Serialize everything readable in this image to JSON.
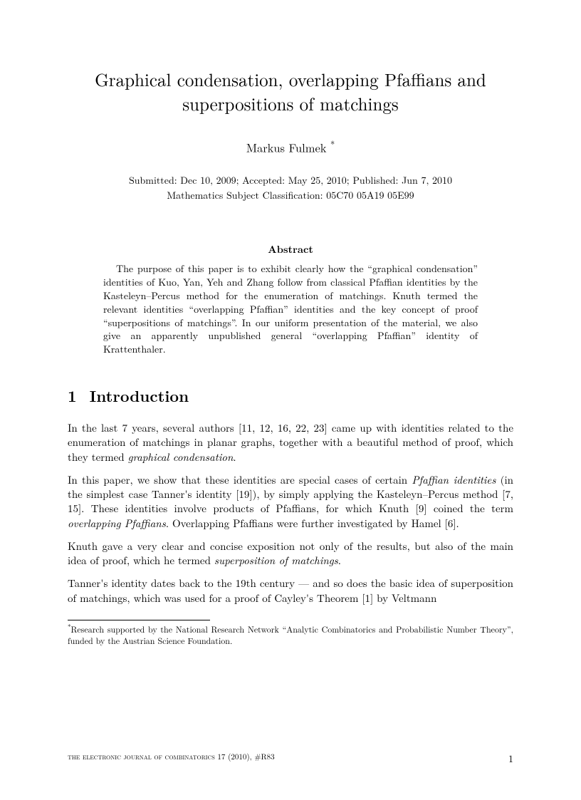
{
  "title_line1": "Graphical condensation, overlapping Pfaffians and",
  "title_line2": "superpositions of matchings",
  "author": "Markus Fulmek",
  "author_mark": "*",
  "submission": "Submitted: Dec 10, 2009; Accepted: May 25, 2010; Published: Jun 7, 2010",
  "msc": "Mathematics Subject Classification: 05C70 05A19 05E99",
  "abstract_label": "Abstract",
  "abstract_text": "The purpose of this paper is to exhibit clearly how the “graphical condensation” identities of Kuo, Yan, Yeh and Zhang follow from classical Pfaffian identities by the Kasteleyn–Percus method for the enumeration of matchings. Knuth termed the relevant identities “overlapping Pfaffian” identities and the key concept of proof “superpositions of matchings”. In our uniform presentation of the material, we also give an apparently unpublished general “overlapping Pfaffian” identity of Krattenthaler.",
  "section1_num": "1",
  "section1_title": "Introduction",
  "p1_a": "In the last 7 years, several authors [11, 12, 16, 22, 23] came up with identities related to the enumeration of matchings in planar graphs, together with a beautiful method of proof, which they termed ",
  "p1_i": "graphical condensation",
  "p1_b": ".",
  "p2_a": "In this paper, we show that these identities are special cases of certain ",
  "p2_i1": "Pfaffian identities",
  "p2_b": " (in the simplest case Tanner's identity [19]), by simply applying the Kasteleyn–Percus method [7, 15]. These identities involve products of Pfaffians, for which Knuth [9] coined the term ",
  "p2_i2": "overlapping Pfaffians",
  "p2_c": ". Overlapping Pfaffians were further investigated by Hamel [6].",
  "p3_a": "Knuth gave a very clear and concise exposition not only of the results, but also of the main idea of proof, which he termed ",
  "p3_i": "superposition of matchings",
  "p3_b": ".",
  "p4": "Tanner's identity dates back to the 19th century — and so does the basic idea of superposition of matchings, which was used for a proof of Cayley's Theorem [1] by Veltmann",
  "footnote_mark": "*",
  "footnote_text": "Research supported by the National Research Network “Analytic Combinatorics and Probabilistic Number Theory”, funded by the Austrian Science Foundation.",
  "footer_journal": "the electronic journal of combinatorics 17 (2010), #R83",
  "footer_pagenum": "1"
}
